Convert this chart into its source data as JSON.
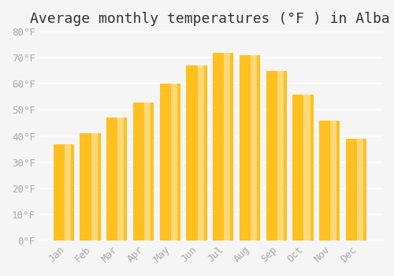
{
  "title": "Average monthly temperatures (°F ) in Alba",
  "months": [
    "Jan",
    "Feb",
    "Mar",
    "Apr",
    "May",
    "Jun",
    "Jul",
    "Aug",
    "Sep",
    "Oct",
    "Nov",
    "Dec"
  ],
  "values": [
    37,
    41,
    47,
    53,
    60,
    67,
    72,
    71,
    65,
    56,
    46,
    39
  ],
  "bar_color_main": "#FFC020",
  "bar_color_light": "#FFD878",
  "ylim": [
    0,
    80
  ],
  "ytick_step": 10,
  "background_color": "#F5F5F5",
  "grid_color": "#FFFFFF",
  "title_fontsize": 13,
  "tick_fontsize": 9,
  "font_family": "monospace"
}
